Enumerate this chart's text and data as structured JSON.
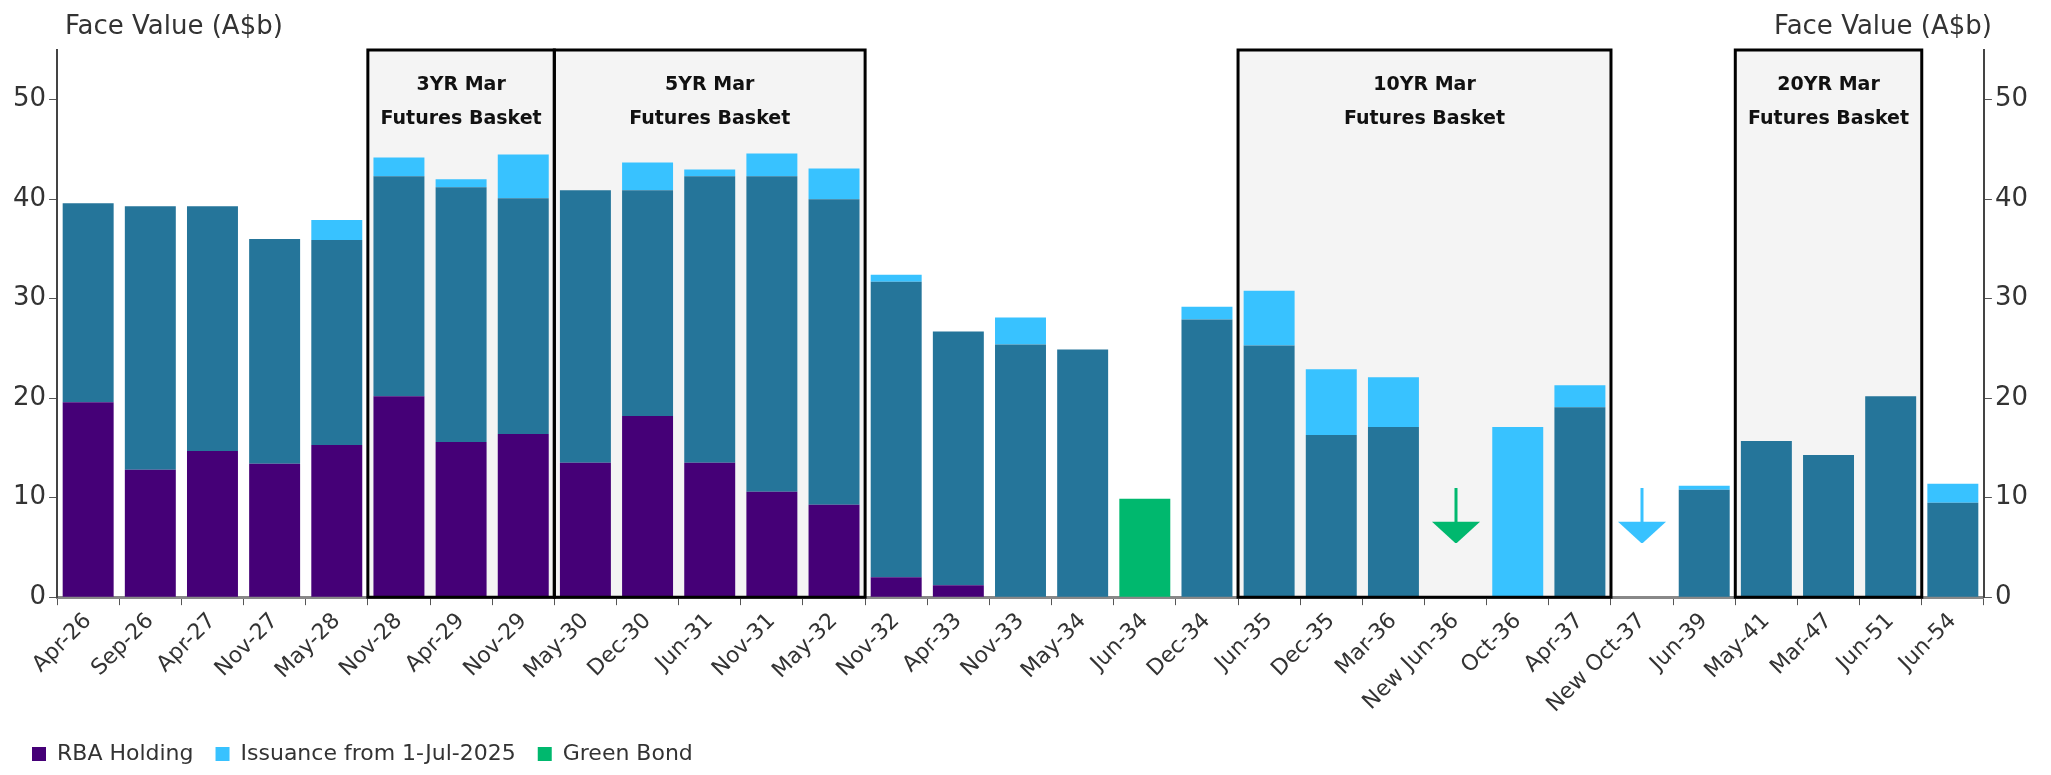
{
  "chart_data": {
    "type": "bar",
    "stacked": true,
    "ylabel": "Face Value (A$b)",
    "y2label": "Face Value (A$b)",
    "categories": [
      "Apr-26",
      "Sep-26",
      "Apr-27",
      "Nov-27",
      "May-28",
      "Nov-28",
      "Apr-29",
      "Nov-29",
      "May-30",
      "Dec-30",
      "Jun-31",
      "Nov-31",
      "May-32",
      "Nov-32",
      "Apr-33",
      "Nov-33",
      "May-34",
      "Jun-34",
      "Dec-34",
      "Jun-35",
      "Dec-35",
      "Mar-36",
      "New Jun-36",
      "Oct-36",
      "Apr-37",
      "New Oct-37",
      "Jun-39",
      "May-41",
      "Mar-47",
      "Jun-51",
      "Jun-54"
    ],
    "series": [
      {
        "name": "RBA Holding",
        "color": "#450077",
        "values": [
          19.6,
          12.8,
          14.7,
          13.4,
          15.3,
          20.2,
          15.6,
          16.4,
          13.5,
          18.2,
          13.5,
          10.6,
          9.3,
          2.0,
          1.2,
          null,
          null,
          null,
          null,
          null,
          null,
          null,
          null,
          null,
          null,
          null,
          null,
          null,
          null,
          null,
          null
        ]
      },
      {
        "color": "#25759a",
        "values": [
          20.0,
          26.5,
          24.6,
          22.6,
          20.6,
          22.1,
          25.6,
          23.7,
          27.4,
          22.7,
          28.8,
          31.7,
          30.7,
          29.7,
          25.5,
          25.4,
          24.9,
          null,
          27.9,
          25.3,
          16.3,
          17.1,
          null,
          null,
          19.1,
          null,
          10.8,
          15.7,
          14.3,
          20.2,
          9.5
        ]
      },
      {
        "name": "Issuance from 1-Jul-2025",
        "color": "#38c2ff",
        "values": [
          null,
          null,
          null,
          null,
          2.0,
          1.9,
          0.8,
          4.4,
          null,
          2.8,
          0.7,
          2.3,
          3.1,
          0.7,
          null,
          2.7,
          null,
          null,
          1.3,
          5.5,
          6.6,
          5.0,
          null,
          17.1,
          2.2,
          null,
          0.4,
          null,
          null,
          null,
          1.9
        ]
      },
      {
        "name": "Green Bond",
        "color": "#00b86e",
        "values": [
          null,
          null,
          null,
          null,
          null,
          null,
          null,
          null,
          null,
          null,
          null,
          null,
          null,
          null,
          null,
          null,
          null,
          9.9,
          null,
          null,
          null,
          null,
          null,
          null,
          null,
          null,
          null,
          null,
          null,
          null,
          null
        ]
      }
    ],
    "ylim": [
      0,
      55
    ],
    "yticks": [
      0,
      10,
      20,
      30,
      40,
      50
    ],
    "y2lim": [
      0,
      55
    ],
    "y2ticks": [
      0,
      10,
      20,
      30,
      40,
      50
    ],
    "bands": [
      {
        "axis": "x",
        "from": "Nov-28",
        "to": "Nov-29",
        "label": "3YR Mar\nFutures Basket",
        "color": "#f4f4f4"
      },
      {
        "axis": "x",
        "from": "May-30",
        "to": "May-32",
        "label": "5YR Mar\nFutures Basket",
        "color": "#f4f4f4"
      },
      {
        "axis": "x",
        "from": "Jun-35",
        "to": "Apr-37",
        "label": "10YR Mar\nFutures Basket",
        "color": "#f4f4f4"
      },
      {
        "axis": "x",
        "from": "May-41",
        "to": "Jun-51",
        "label": "20YR Mar\nFutures Basket",
        "color": "#f4f4f4"
      }
    ],
    "grid": false,
    "legend": "bottom left"
  }
}
